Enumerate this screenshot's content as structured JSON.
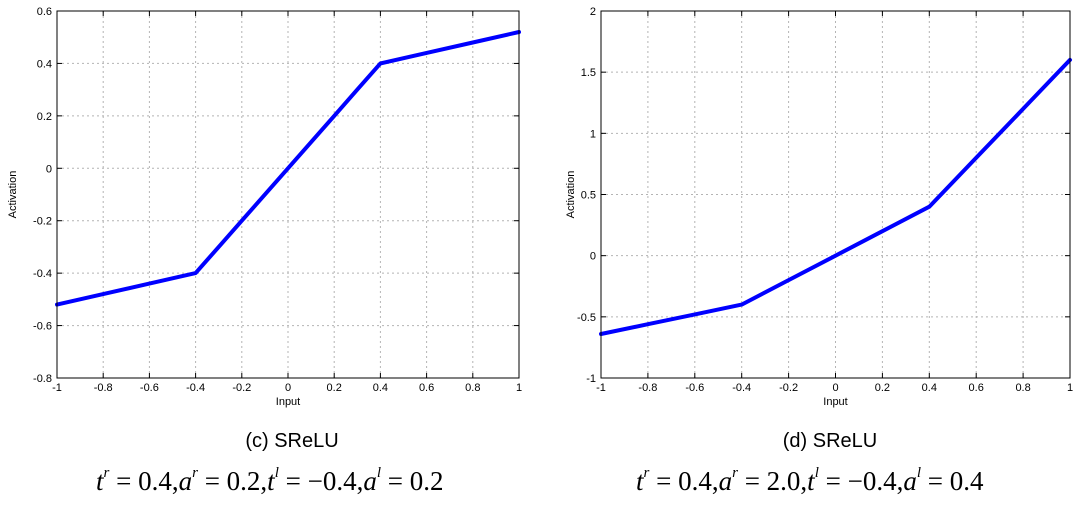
{
  "chart_data": [
    {
      "type": "line",
      "xlabel": "Input",
      "ylabel": "Activation",
      "xlim": [
        -1,
        1
      ],
      "ylim": [
        -0.8,
        0.6
      ],
      "xticks": [
        -1,
        -0.8,
        -0.6,
        -0.4,
        -0.2,
        0,
        0.2,
        0.4,
        0.6,
        0.8,
        1
      ],
      "yticks": [
        -0.8,
        -0.6,
        -0.4,
        -0.2,
        0,
        0.2,
        0.4,
        0.6
      ],
      "xtick_labels": [
        "-1",
        "-0.8",
        "-0.6",
        "-0.4",
        "-0.2",
        "0",
        "0.2",
        "0.4",
        "0.6",
        "0.8",
        "1"
      ],
      "ytick_labels": [
        "-0.8",
        "-0.6",
        "-0.4",
        "-0.2",
        "0",
        "0.2",
        "0.4",
        "0.6"
      ],
      "grid": true,
      "line_color": "#0000ff",
      "x": [
        -1,
        -0.8,
        -0.6,
        -0.4,
        -0.3,
        -0.2,
        0,
        0.2,
        0.3,
        0.4,
        0.6,
        0.8,
        1
      ],
      "y": [
        -0.52,
        -0.48,
        -0.44,
        -0.4,
        -0.3,
        -0.2,
        0,
        0.2,
        0.3,
        0.4,
        0.44,
        0.48,
        0.52
      ]
    },
    {
      "type": "line",
      "xlabel": "Input",
      "ylabel": "Activation",
      "xlim": [
        -1,
        1
      ],
      "ylim": [
        -1,
        2
      ],
      "xticks": [
        -1,
        -0.8,
        -0.6,
        -0.4,
        -0.2,
        0,
        0.2,
        0.4,
        0.6,
        0.8,
        1
      ],
      "yticks": [
        -1,
        -0.5,
        0,
        0.5,
        1,
        1.5,
        2
      ],
      "xtick_labels": [
        "-1",
        "-0.8",
        "-0.6",
        "-0.4",
        "-0.2",
        "0",
        "0.2",
        "0.4",
        "0.6",
        "0.8",
        "1"
      ],
      "ytick_labels": [
        "-1",
        "-0.5",
        "0",
        "0.5",
        "1",
        "1.5",
        "2"
      ],
      "grid": true,
      "line_color": "#0000ff",
      "x": [
        -1,
        -0.8,
        -0.6,
        -0.4,
        -0.2,
        0,
        0.2,
        0.4,
        0.6,
        0.8,
        1
      ],
      "y": [
        -0.64,
        -0.56,
        -0.48,
        -0.4,
        -0.2,
        0,
        0.2,
        0.4,
        0.8,
        1.2,
        1.6
      ]
    }
  ],
  "captions": [
    {
      "label": "(c) SReLU",
      "formula": {
        "tr": "0.4",
        "ar": "0.2",
        "tl": "−0.4",
        "al": "0.2"
      }
    },
    {
      "label": "(d) SReLU",
      "formula": {
        "tr": "0.4",
        "ar": "2.0",
        "tl": "−0.4",
        "al": "0.4"
      }
    }
  ],
  "symbols": {
    "t": "t",
    "a": "a",
    "r": "r",
    "l": "l",
    "eq": " = ",
    "comma": ","
  }
}
